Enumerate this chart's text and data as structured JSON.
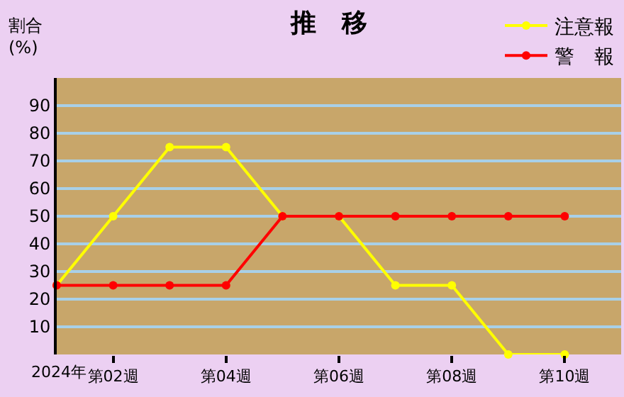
{
  "chart_data": {
    "type": "line",
    "title": "推　移",
    "ylabel": "割合\n(%)",
    "categories": [
      null,
      "第02週",
      null,
      "第04週",
      null,
      "第06週",
      null,
      "第08週",
      null,
      "第10週"
    ],
    "xlabel": "2024年",
    "series": [
      {
        "name": "注意報",
        "color": "#ffff00",
        "values": [
          25,
          50,
          75,
          75,
          50,
          50,
          25,
          25,
          0,
          0
        ]
      },
      {
        "name": "警　報",
        "color": "#ff0000",
        "values": [
          25,
          25,
          25,
          25,
          50,
          50,
          50,
          50,
          50,
          50
        ]
      }
    ],
    "ylim": [
      0,
      100
    ],
    "yticks": [
      10,
      20,
      30,
      40,
      50,
      60,
      70,
      80,
      90
    ],
    "grid": "y",
    "legend": "top right",
    "marker": "circle",
    "line_style": "solid"
  }
}
